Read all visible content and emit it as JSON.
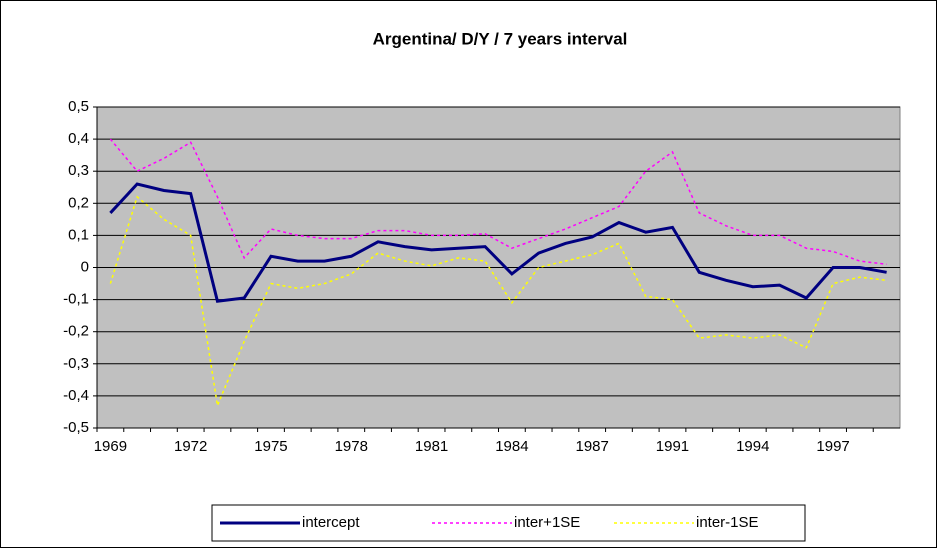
{
  "chart_data": {
    "type": "line",
    "title": "Argentina/ D/Y / 7 years interval",
    "categories": [
      "1969",
      null,
      null,
      "1972",
      null,
      null,
      "1975",
      null,
      null,
      "1978",
      null,
      null,
      "1981",
      null,
      null,
      "1984",
      null,
      null,
      "1987",
      null,
      null,
      "1991",
      null,
      null,
      "1994",
      null,
      null,
      "1997",
      null,
      null
    ],
    "series": [
      {
        "name": "intercept",
        "color": "#000080",
        "dash": false,
        "values": [
          0.17,
          0.26,
          0.24,
          0.23,
          -0.105,
          -0.095,
          0.035,
          0.02,
          0.02,
          0.035,
          0.08,
          0.065,
          0.055,
          0.06,
          0.065,
          -0.02,
          0.045,
          0.075,
          0.095,
          0.14,
          0.11,
          0.125,
          -0.015,
          -0.04,
          -0.06,
          -0.055,
          -0.095,
          0,
          0,
          -0.015
        ]
      },
      {
        "name": "inter+1SE",
        "color": "#ff00ff",
        "dash": true,
        "values": [
          0.4,
          0.3,
          0.34,
          0.39,
          0.22,
          0.03,
          0.12,
          0.1,
          0.09,
          0.09,
          0.115,
          0.115,
          0.1,
          0.1,
          0.105,
          0.06,
          0.09,
          0.12,
          0.155,
          0.19,
          0.3,
          0.36,
          0.17,
          0.13,
          0.1,
          0.1,
          0.06,
          0.05,
          0.02,
          0.01
        ]
      },
      {
        "name": "inter-1SE",
        "color": "#ffff00",
        "dash": true,
        "values": [
          -0.05,
          0.22,
          0.15,
          0.1,
          -0.43,
          -0.23,
          -0.05,
          -0.065,
          -0.05,
          -0.02,
          0.045,
          0.02,
          0.005,
          0.03,
          0.02,
          -0.11,
          0,
          0.02,
          0.04,
          0.075,
          -0.09,
          -0.1,
          -0.22,
          -0.21,
          -0.22,
          -0.21,
          -0.25,
          -0.05,
          -0.03,
          -0.04
        ]
      }
    ],
    "ylim": [
      -0.5,
      0.5
    ],
    "yticks": [
      {
        "value": -0.5,
        "label": "-0,5"
      },
      {
        "value": -0.4,
        "label": "-0,4"
      },
      {
        "value": -0.3,
        "label": "-0,3"
      },
      {
        "value": -0.2,
        "label": "-0,2"
      },
      {
        "value": -0.1,
        "label": "-0,1"
      },
      0,
      {
        "value": 0.1,
        "label": "0,1"
      },
      {
        "value": 0.2,
        "label": "0,2"
      },
      {
        "value": 0.3,
        "label": "0,3"
      },
      {
        "value": 0.4,
        "label": "0,4"
      },
      {
        "value": 0.5,
        "label": "0,5"
      }
    ],
    "grid": true,
    "plot_background": "#c0c0c0",
    "legend": "bottom"
  }
}
